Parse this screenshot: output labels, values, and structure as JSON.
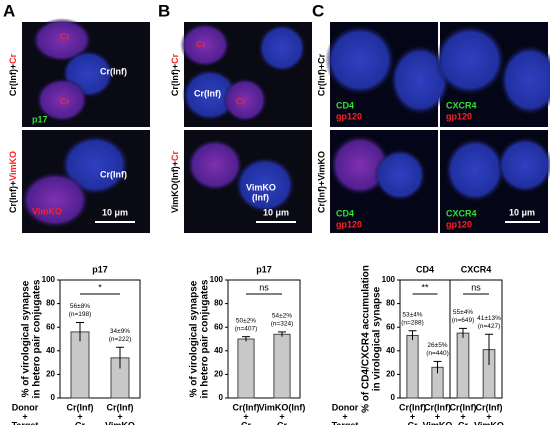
{
  "panels": [
    {
      "label": "A",
      "rows": [
        {
          "side_label": [
            "Cr(Inf)+",
            "Cr"
          ],
          "image_texts": [
            "Cr",
            "Cr(Inf)",
            "Cr",
            "p17"
          ]
        },
        {
          "side_label": [
            "Cr(Inf)+",
            "VimKO"
          ],
          "image_texts": [
            "Cr(Inf)",
            "VimKO"
          ],
          "scale_bar": "10 μm"
        }
      ]
    },
    {
      "label": "B",
      "rows": [
        {
          "side_label": [
            "Cr(Inf)+",
            "Cr"
          ],
          "image_texts": [
            "Cr",
            "Cr(Inf)",
            "Cr"
          ]
        },
        {
          "side_label": [
            "VimKO(Inf)+",
            "Cr"
          ],
          "image_texts": [
            "VimKO",
            "(Inf)"
          ],
          "scale_bar": "10 μm"
        }
      ]
    },
    {
      "label": "C",
      "rows": [
        {
          "side_label": [
            "Cr(Inf)+Cr"
          ],
          "image_texts": [
            "CD4",
            "gp120",
            "CXCR4",
            "gp120"
          ]
        },
        {
          "side_label": [
            "Cr(Inf)+VimKO"
          ],
          "image_texts": [
            "CD4",
            "gp120",
            "CXCR4",
            "gp120"
          ],
          "scale_bar": "10 μm"
        }
      ]
    }
  ],
  "chart_data": [
    {
      "type": "bar",
      "title": "p17",
      "y_label": [
        "% of virological synapse",
        "in hetero pair conjugates"
      ],
      "x_label": [
        "Donor",
        "+",
        "Target"
      ],
      "categories": [
        [
          "Cr(Inf)",
          "+",
          "Cr"
        ],
        [
          "Cr(Inf)",
          "+",
          "VimKO"
        ]
      ],
      "values": [
        56,
        34
      ],
      "errors": [
        8,
        9
      ],
      "value_labels": [
        "56±8%",
        "34±9%"
      ],
      "n_labels": [
        "(n=198)",
        "(n=222)"
      ],
      "significance": "*",
      "color": "#c8c8c8",
      "ylim": [
        0,
        100
      ],
      "yticks": [
        0,
        20,
        40,
        60,
        80,
        100
      ]
    },
    {
      "type": "bar",
      "title": "p17",
      "y_label": [
        "% of virological synapse",
        "in hetero pair conjugates"
      ],
      "categories": [
        [
          "Cr(Inf)",
          "+",
          "Cr"
        ],
        [
          "VimKO(Inf)",
          "+",
          "Cr"
        ]
      ],
      "values": [
        50,
        54
      ],
      "errors": [
        2,
        2
      ],
      "value_labels": [
        "50±2%",
        "54±2%"
      ],
      "n_labels": [
        "(n=407)",
        "(n=324)"
      ],
      "significance": "ns",
      "color": "#c8c8c8",
      "ylim": [
        0,
        100
      ],
      "yticks": [
        0,
        20,
        40,
        60,
        80,
        100
      ]
    },
    {
      "type": "bar",
      "title": "CD4",
      "y_label": [
        "% of CD4/CXCR4 accumulation",
        "in virological synapse"
      ],
      "x_label": [
        "Donor",
        "+",
        "Target"
      ],
      "categories": [
        [
          "Cr(Inf)",
          "+",
          "Cr"
        ],
        [
          "Cr(Inf)",
          "+",
          "VimKO"
        ]
      ],
      "values": [
        53,
        26
      ],
      "errors": [
        4,
        5
      ],
      "value_labels": [
        "53±4%",
        "26±5%"
      ],
      "n_labels": [
        "(n=288)",
        "(n=440)"
      ],
      "significance": "**",
      "color": "#c8c8c8",
      "ylim": [
        0,
        100
      ],
      "yticks": [
        0,
        20,
        40,
        60,
        80,
        100
      ]
    },
    {
      "type": "bar",
      "title": "CXCR4",
      "categories": [
        [
          "Cr(Inf)",
          "+",
          "Cr"
        ],
        [
          "Cr(Inf)",
          "+",
          "VimKO"
        ]
      ],
      "values": [
        55,
        41
      ],
      "errors": [
        4,
        13
      ],
      "value_labels": [
        "55±4%",
        "41±13%"
      ],
      "n_labels": [
        "(n=649)",
        "(n=427)"
      ],
      "significance": "ns",
      "color": "#c8c8c8",
      "ylim": [
        0,
        100
      ]
    }
  ]
}
